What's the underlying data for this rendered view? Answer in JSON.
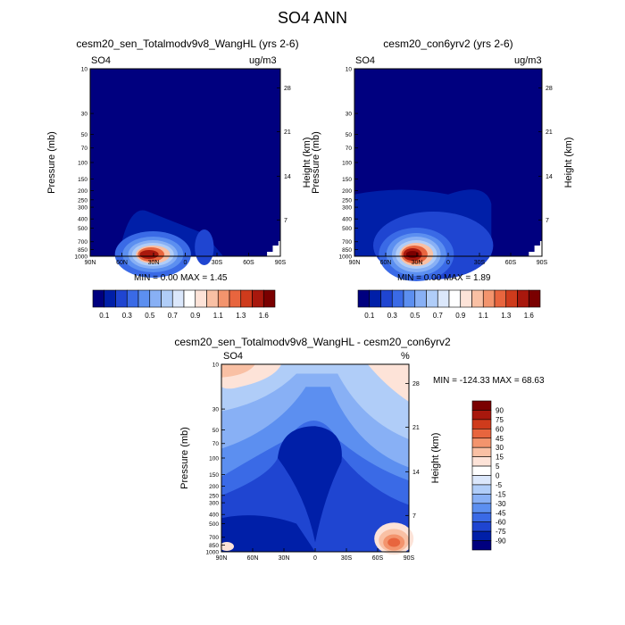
{
  "title": "SO4 ANN",
  "colors": {
    "blue_ramp": [
      "#00007f",
      "#001fa8",
      "#1f45d1",
      "#3a6ae6",
      "#5c8ff0",
      "#88b0f5",
      "#b0cdf8",
      "#dbe7fb"
    ],
    "red_ramp": [
      "#fde3d8",
      "#f9c0a4",
      "#f3946d",
      "#e8653e",
      "#cf3b1c",
      "#a8180d",
      "#7a0000"
    ],
    "white": "#ffffff"
  },
  "panels": [
    {
      "id": "top-left",
      "subtitle": "cesm20_sen_Totalmodv9v8_WangHL (yrs 2-6)",
      "left_label": "SO4",
      "right_label": "ug/m3",
      "ylabel": "Pressure (mb)",
      "ylabel2": "Height (km)",
      "stats": "MIN =   0.00  MAX =   1.45",
      "min": 0.0,
      "max": 1.45
    },
    {
      "id": "top-right",
      "subtitle": "cesm20_con6yrv2 (yrs 2-6)",
      "left_label": "SO4",
      "right_label": "ug/m3",
      "ylabel": "Pressure (mb)",
      "ylabel2": "Height (km)",
      "stats": "MIN =   0.00  MAX =   1.89",
      "min": 0.0,
      "max": 1.89
    },
    {
      "id": "bottom",
      "subtitle": "cesm20_sen_Totalmodv9v8_WangHL - cesm20_con6yrv2",
      "left_label": "SO4",
      "right_label": "%",
      "ylabel": "Pressure (mb)",
      "ylabel2": "Height (km)",
      "stats": "MIN = -124.33  MAX =  68.63",
      "min": -124.33,
      "max": 68.63
    }
  ],
  "chart_data": [
    {
      "type": "heatmap",
      "subtitle": "cesm20_sen_Totalmodv9v8_WangHL (yrs 2-6)",
      "x_ticks": [
        "90N",
        "60N",
        "30N",
        "0",
        "30S",
        "60S",
        "90S"
      ],
      "y_ticks": [
        "10",
        "30",
        "50",
        "70",
        "100",
        "150",
        "200",
        "250",
        "300",
        "400",
        "500",
        "700",
        "850",
        "1000"
      ],
      "y2_ticks": [
        "28",
        "21",
        "14",
        "7"
      ],
      "ylabel": "Pressure (mb)",
      "ylabel2": "Height (km)",
      "min": 0.0,
      "max": 1.45,
      "colorbar_labels": [
        "0.1",
        "0.3",
        "0.5",
        "0.7",
        "0.9",
        "1.1",
        "1.3",
        "1.6"
      ],
      "colorbar_levels": 16
    },
    {
      "type": "heatmap",
      "subtitle": "cesm20_con6yrv2 (yrs 2-6)",
      "x_ticks": [
        "90N",
        "60N",
        "30N",
        "0",
        "30S",
        "60S",
        "90S"
      ],
      "y_ticks": [
        "10",
        "30",
        "50",
        "70",
        "100",
        "150",
        "200",
        "250",
        "300",
        "400",
        "500",
        "700",
        "850",
        "1000"
      ],
      "y2_ticks": [
        "28",
        "21",
        "14",
        "7"
      ],
      "ylabel": "Pressure (mb)",
      "ylabel2": "Height (km)",
      "min": 0.0,
      "max": 1.89,
      "colorbar_labels": [
        "0.1",
        "0.3",
        "0.5",
        "0.7",
        "0.9",
        "1.1",
        "1.3",
        "1.6"
      ],
      "colorbar_levels": 16
    },
    {
      "type": "heatmap",
      "subtitle": "cesm20_sen_Totalmodv9v8_WangHL - cesm20_con6yrv2",
      "x_ticks": [
        "90N",
        "60N",
        "30N",
        "0",
        "30S",
        "60S",
        "90S"
      ],
      "y_ticks": [
        "10",
        "30",
        "50",
        "70",
        "100",
        "150",
        "200",
        "250",
        "300",
        "400",
        "500",
        "700",
        "850",
        "1000"
      ],
      "y2_ticks": [
        "28",
        "21",
        "14",
        "7"
      ],
      "ylabel": "Pressure (mb)",
      "ylabel2": "Height (km)",
      "min": -124.33,
      "max": 68.63,
      "colorbar_labels": [
        "90",
        "75",
        "60",
        "45",
        "30",
        "15",
        "5",
        "0",
        "-5",
        "-15",
        "-30",
        "-45",
        "-60",
        "-75",
        "-90"
      ]
    }
  ]
}
